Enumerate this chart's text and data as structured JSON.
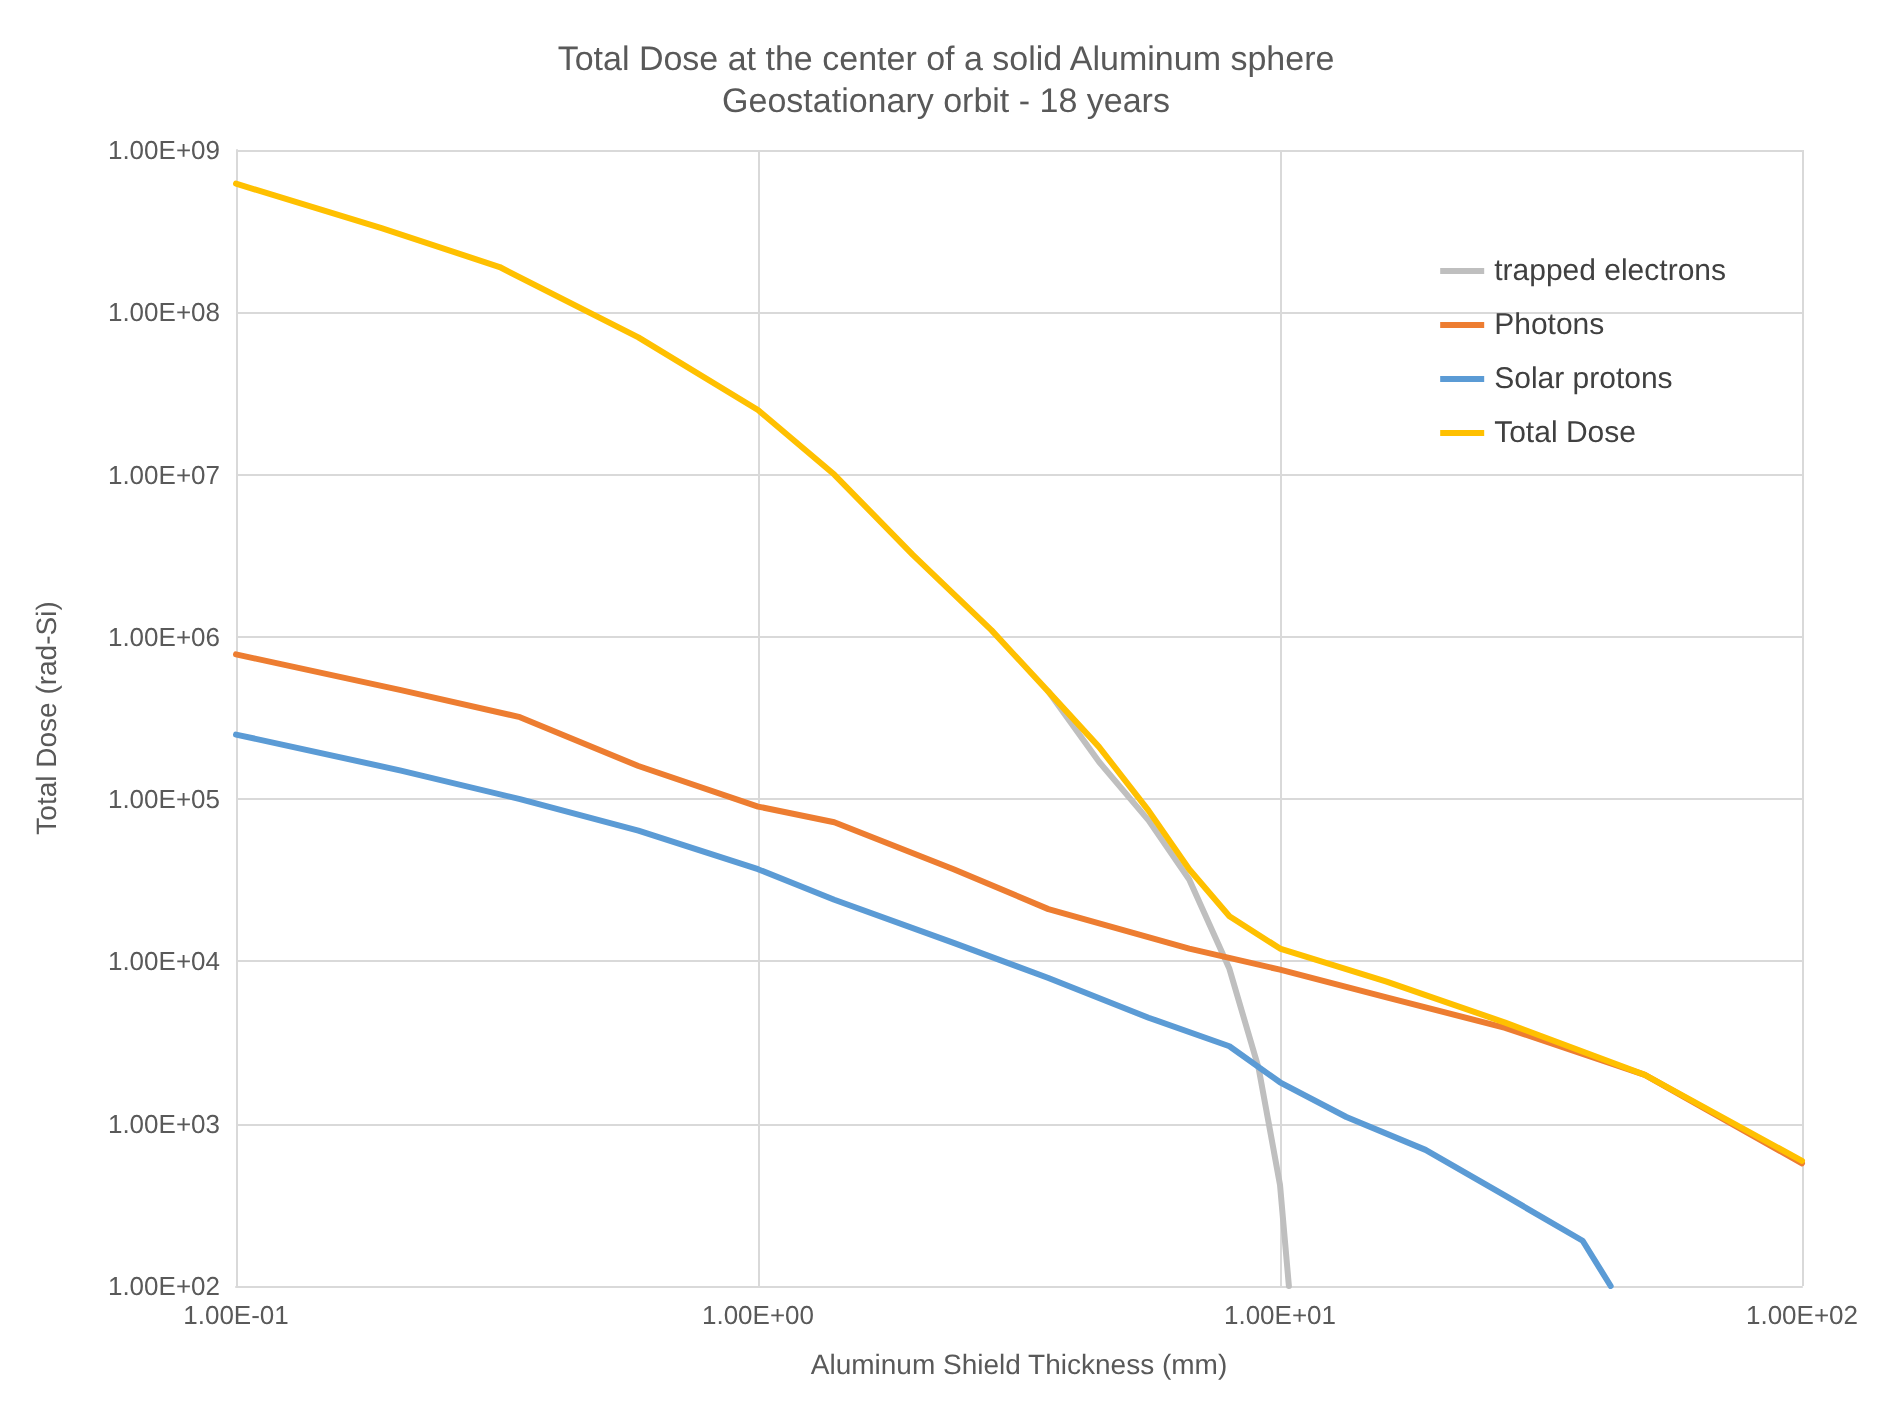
{
  "chart_data": {
    "type": "line",
    "title": "Total Dose at the center of a solid Aluminum sphere",
    "subtitle": "Geostationary orbit - 18 years",
    "xlabel": "Aluminum Shield Thickness (mm)",
    "ylabel": "Total Dose (rad-Si)",
    "log": "xy",
    "grid": true,
    "legend": "top right",
    "marker": "none",
    "line_style": "solid",
    "xlim": [
      0.1,
      100
    ],
    "ylim": [
      100,
      1000000000
    ],
    "xticks": [
      {
        "value": 0.1,
        "label": "1.00E-01"
      },
      {
        "value": 1,
        "label": "1.00E+00"
      },
      {
        "value": 10,
        "label": "1.00E+01"
      },
      {
        "value": 100,
        "label": "1.00E+02"
      }
    ],
    "yticks": [
      {
        "value": 100,
        "label": "1.00E+02"
      },
      {
        "value": 1000,
        "label": "1.00E+03"
      },
      {
        "value": 10000,
        "label": "1.00E+04"
      },
      {
        "value": 100000,
        "label": "1.00E+05"
      },
      {
        "value": 1000000,
        "label": "1.00E+06"
      },
      {
        "value": 10000000,
        "label": "1.00E+07"
      },
      {
        "value": 100000000,
        "label": "1.00E+08"
      },
      {
        "value": 1000000000,
        "label": "1.00E+09"
      }
    ],
    "series": [
      {
        "name": "trapped electrons",
        "color": "#bfbfbf",
        "x": [
          3.6,
          4.5,
          5.6,
          6.7,
          8.0,
          9.1,
          10,
          10.4
        ],
        "values": [
          460000,
          170000,
          74000,
          32000,
          9000,
          2200,
          420,
          100
        ]
      },
      {
        "name": "Photons",
        "color": "#ed7d31",
        "x": [
          0.1,
          0.207,
          0.35,
          0.59,
          1.0,
          1.4,
          2.37,
          3.6,
          6.7,
          10,
          16,
          27,
          50,
          100
        ],
        "values": [
          780000,
          470000,
          320000,
          160000,
          90000,
          72000,
          37000,
          21000,
          12000,
          8900,
          6000,
          3900,
          2000,
          570
        ]
      },
      {
        "name": "Solar protons",
        "color": "#5b9bd5",
        "x": [
          0.1,
          0.207,
          0.35,
          0.59,
          1.0,
          1.4,
          2.37,
          3.6,
          5.6,
          8.0,
          10,
          13.4,
          19,
          27,
          38,
          43
        ],
        "values": [
          250000,
          150000,
          100000,
          64000,
          37000,
          24000,
          13000,
          7900,
          4500,
          3000,
          1800,
          1100,
          690,
          360,
          190,
          100
        ]
      },
      {
        "name": "Total Dose",
        "color": "#ffc000",
        "x": [
          0.1,
          0.19,
          0.32,
          0.59,
          1.0,
          1.4,
          1.98,
          2.8,
          3.6,
          4.5,
          5.6,
          6.7,
          8.0,
          10,
          16,
          27,
          50,
          100
        ],
        "values": [
          620000000,
          330000000,
          190000000,
          70000000,
          25000000,
          10000000,
          3200000,
          1100000,
          460000,
          210000,
          85000,
          37000,
          19000,
          12000,
          7500,
          4200,
          2000,
          590
        ]
      }
    ]
  }
}
